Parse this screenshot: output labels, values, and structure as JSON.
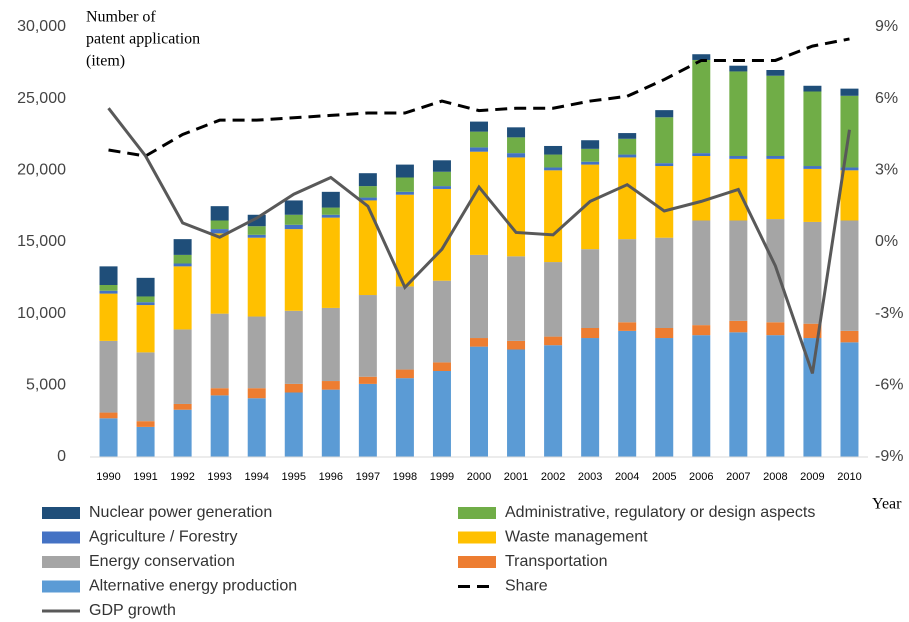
{
  "chart_data": {
    "type": "bar",
    "stacked": true,
    "ylabel": [
      "Number of",
      "patent application",
      "(item)"
    ],
    "xlabel": "Year",
    "categories": [
      "1990",
      "1991",
      "1992",
      "1993",
      "1994",
      "1995",
      "1996",
      "1997",
      "1998",
      "1999",
      "2000",
      "2001",
      "2002",
      "2003",
      "2004",
      "2005",
      "2006",
      "2007",
      "2008",
      "2009",
      "2010"
    ],
    "series": [
      {
        "name": "Alternative energy production",
        "color": "#5b9bd5",
        "type": "bar",
        "values": [
          2700,
          2100,
          3300,
          4300,
          4100,
          4500,
          4700,
          5100,
          5500,
          6000,
          7700,
          7500,
          7800,
          8300,
          8800,
          8300,
          8500,
          8700,
          8500,
          8300,
          8000
        ]
      },
      {
        "name": "Transportation",
        "color": "#ed7d31",
        "type": "bar",
        "values": [
          400,
          400,
          400,
          500,
          700,
          600,
          600,
          500,
          600,
          600,
          600,
          600,
          600,
          700,
          600,
          700,
          700,
          800,
          900,
          1000,
          800
        ]
      },
      {
        "name": "Energy conservation",
        "color": "#a5a5a5",
        "type": "bar",
        "values": [
          5000,
          4800,
          5200,
          5200,
          5000,
          5100,
          5100,
          5700,
          5800,
          5700,
          5800,
          5900,
          5200,
          5500,
          5800,
          6300,
          7300,
          7000,
          7200,
          7100,
          7700
        ]
      },
      {
        "name": "Waste management",
        "color": "#ffc000",
        "type": "bar",
        "values": [
          3300,
          3300,
          4400,
          5600,
          5500,
          5700,
          6300,
          6600,
          6400,
          6400,
          7200,
          6900,
          6400,
          5900,
          5700,
          5000,
          4500,
          4300,
          4200,
          3700,
          3500
        ]
      },
      {
        "name": "Agriculture / Forestry",
        "color": "#4472c4",
        "type": "bar",
        "values": [
          200,
          200,
          200,
          300,
          200,
          300,
          200,
          200,
          200,
          200,
          300,
          300,
          200,
          200,
          200,
          200,
          200,
          200,
          200,
          200,
          200
        ]
      },
      {
        "name": "Administrative, regulatory or design aspects",
        "color": "#70ad47",
        "type": "bar",
        "values": [
          400,
          400,
          600,
          600,
          600,
          700,
          500,
          800,
          1000,
          1000,
          1100,
          1100,
          900,
          900,
          1100,
          3200,
          6500,
          5900,
          5600,
          5200,
          5000
        ]
      },
      {
        "name": "Nuclear power generation",
        "color": "#1f4e79",
        "type": "bar",
        "values": [
          1300,
          1300,
          1100,
          1000,
          800,
          1000,
          1100,
          900,
          900,
          800,
          700,
          700,
          600,
          600,
          400,
          500,
          400,
          400,
          400,
          400,
          500
        ]
      },
      {
        "name": "Share",
        "color": "#000000",
        "type": "line",
        "dashed": true,
        "axis": "y2",
        "values": [
          3.85,
          3.6,
          4.5,
          5.1,
          5.1,
          5.2,
          5.3,
          5.4,
          5.4,
          5.9,
          5.5,
          5.6,
          5.6,
          5.9,
          6.1,
          6.8,
          7.6,
          7.6,
          7.6,
          8.2,
          8.5
        ]
      },
      {
        "name": "GDP growth",
        "color": "#595959",
        "type": "line",
        "dashed": false,
        "axis": "y2",
        "values": [
          5.6,
          3.6,
          0.8,
          0.2,
          1.0,
          2.0,
          2.7,
          1.5,
          -1.9,
          -0.3,
          2.3,
          0.4,
          0.3,
          1.7,
          2.4,
          1.3,
          1.7,
          2.2,
          -1.0,
          -5.5,
          4.7
        ]
      }
    ],
    "ylim": [
      0,
      30000
    ],
    "yticks": [
      0,
      {
        "value": 5000,
        "label": "5,000"
      },
      {
        "value": 10000,
        "label": "10,000"
      },
      {
        "value": 15000,
        "label": "15,000"
      },
      {
        "value": 20000,
        "label": "20,000"
      },
      {
        "value": 25000,
        "label": "25,000"
      },
      {
        "value": 30000,
        "label": "30,000"
      }
    ],
    "y2lim": [
      -9,
      9
    ],
    "y2ticks": [
      {
        "value": -9,
        "label": "-9%"
      },
      {
        "value": -6,
        "label": "-6%"
      },
      {
        "value": -3,
        "label": "-3%"
      },
      {
        "value": 0,
        "label": "0%"
      },
      {
        "value": 3,
        "label": "3%"
      },
      {
        "value": 6,
        "label": "6%"
      },
      {
        "value": 9,
        "label": "9%"
      }
    ],
    "grid": false
  }
}
